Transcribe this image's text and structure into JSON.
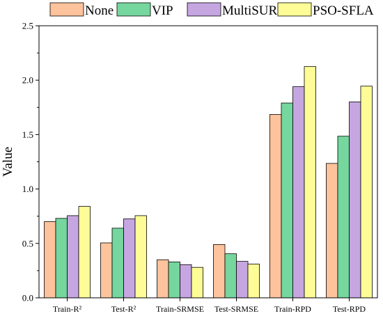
{
  "chart_data": {
    "type": "bar",
    "title": "",
    "xlabel": "",
    "ylabel": "Value",
    "ylim": [
      0,
      2.5
    ],
    "yticks": [
      "0.0",
      "0.5",
      "1.0",
      "1.5",
      "2.0",
      "2.5"
    ],
    "categories": [
      "Train-R²",
      "Test-R²",
      "Train-SRMSE",
      "Test-SRMSE",
      "Train-RPD",
      "Test-RPD"
    ],
    "series": [
      {
        "name": "None",
        "color": "#FCC39C",
        "values": [
          0.7,
          0.505,
          0.35,
          0.49,
          1.685,
          1.235
        ]
      },
      {
        "name": "VIP",
        "color": "#75D69E",
        "values": [
          0.73,
          0.64,
          0.33,
          0.405,
          1.79,
          1.485
        ]
      },
      {
        "name": "MultiSURF",
        "color": "#C6A6E1",
        "values": [
          0.755,
          0.725,
          0.305,
          0.335,
          1.94,
          1.8
        ]
      },
      {
        "name": "PSO-SFLA",
        "color": "#FDFC96",
        "values": [
          0.84,
          0.755,
          0.28,
          0.31,
          2.125,
          1.945
        ]
      }
    ],
    "grid": false,
    "legend_position": "top"
  }
}
